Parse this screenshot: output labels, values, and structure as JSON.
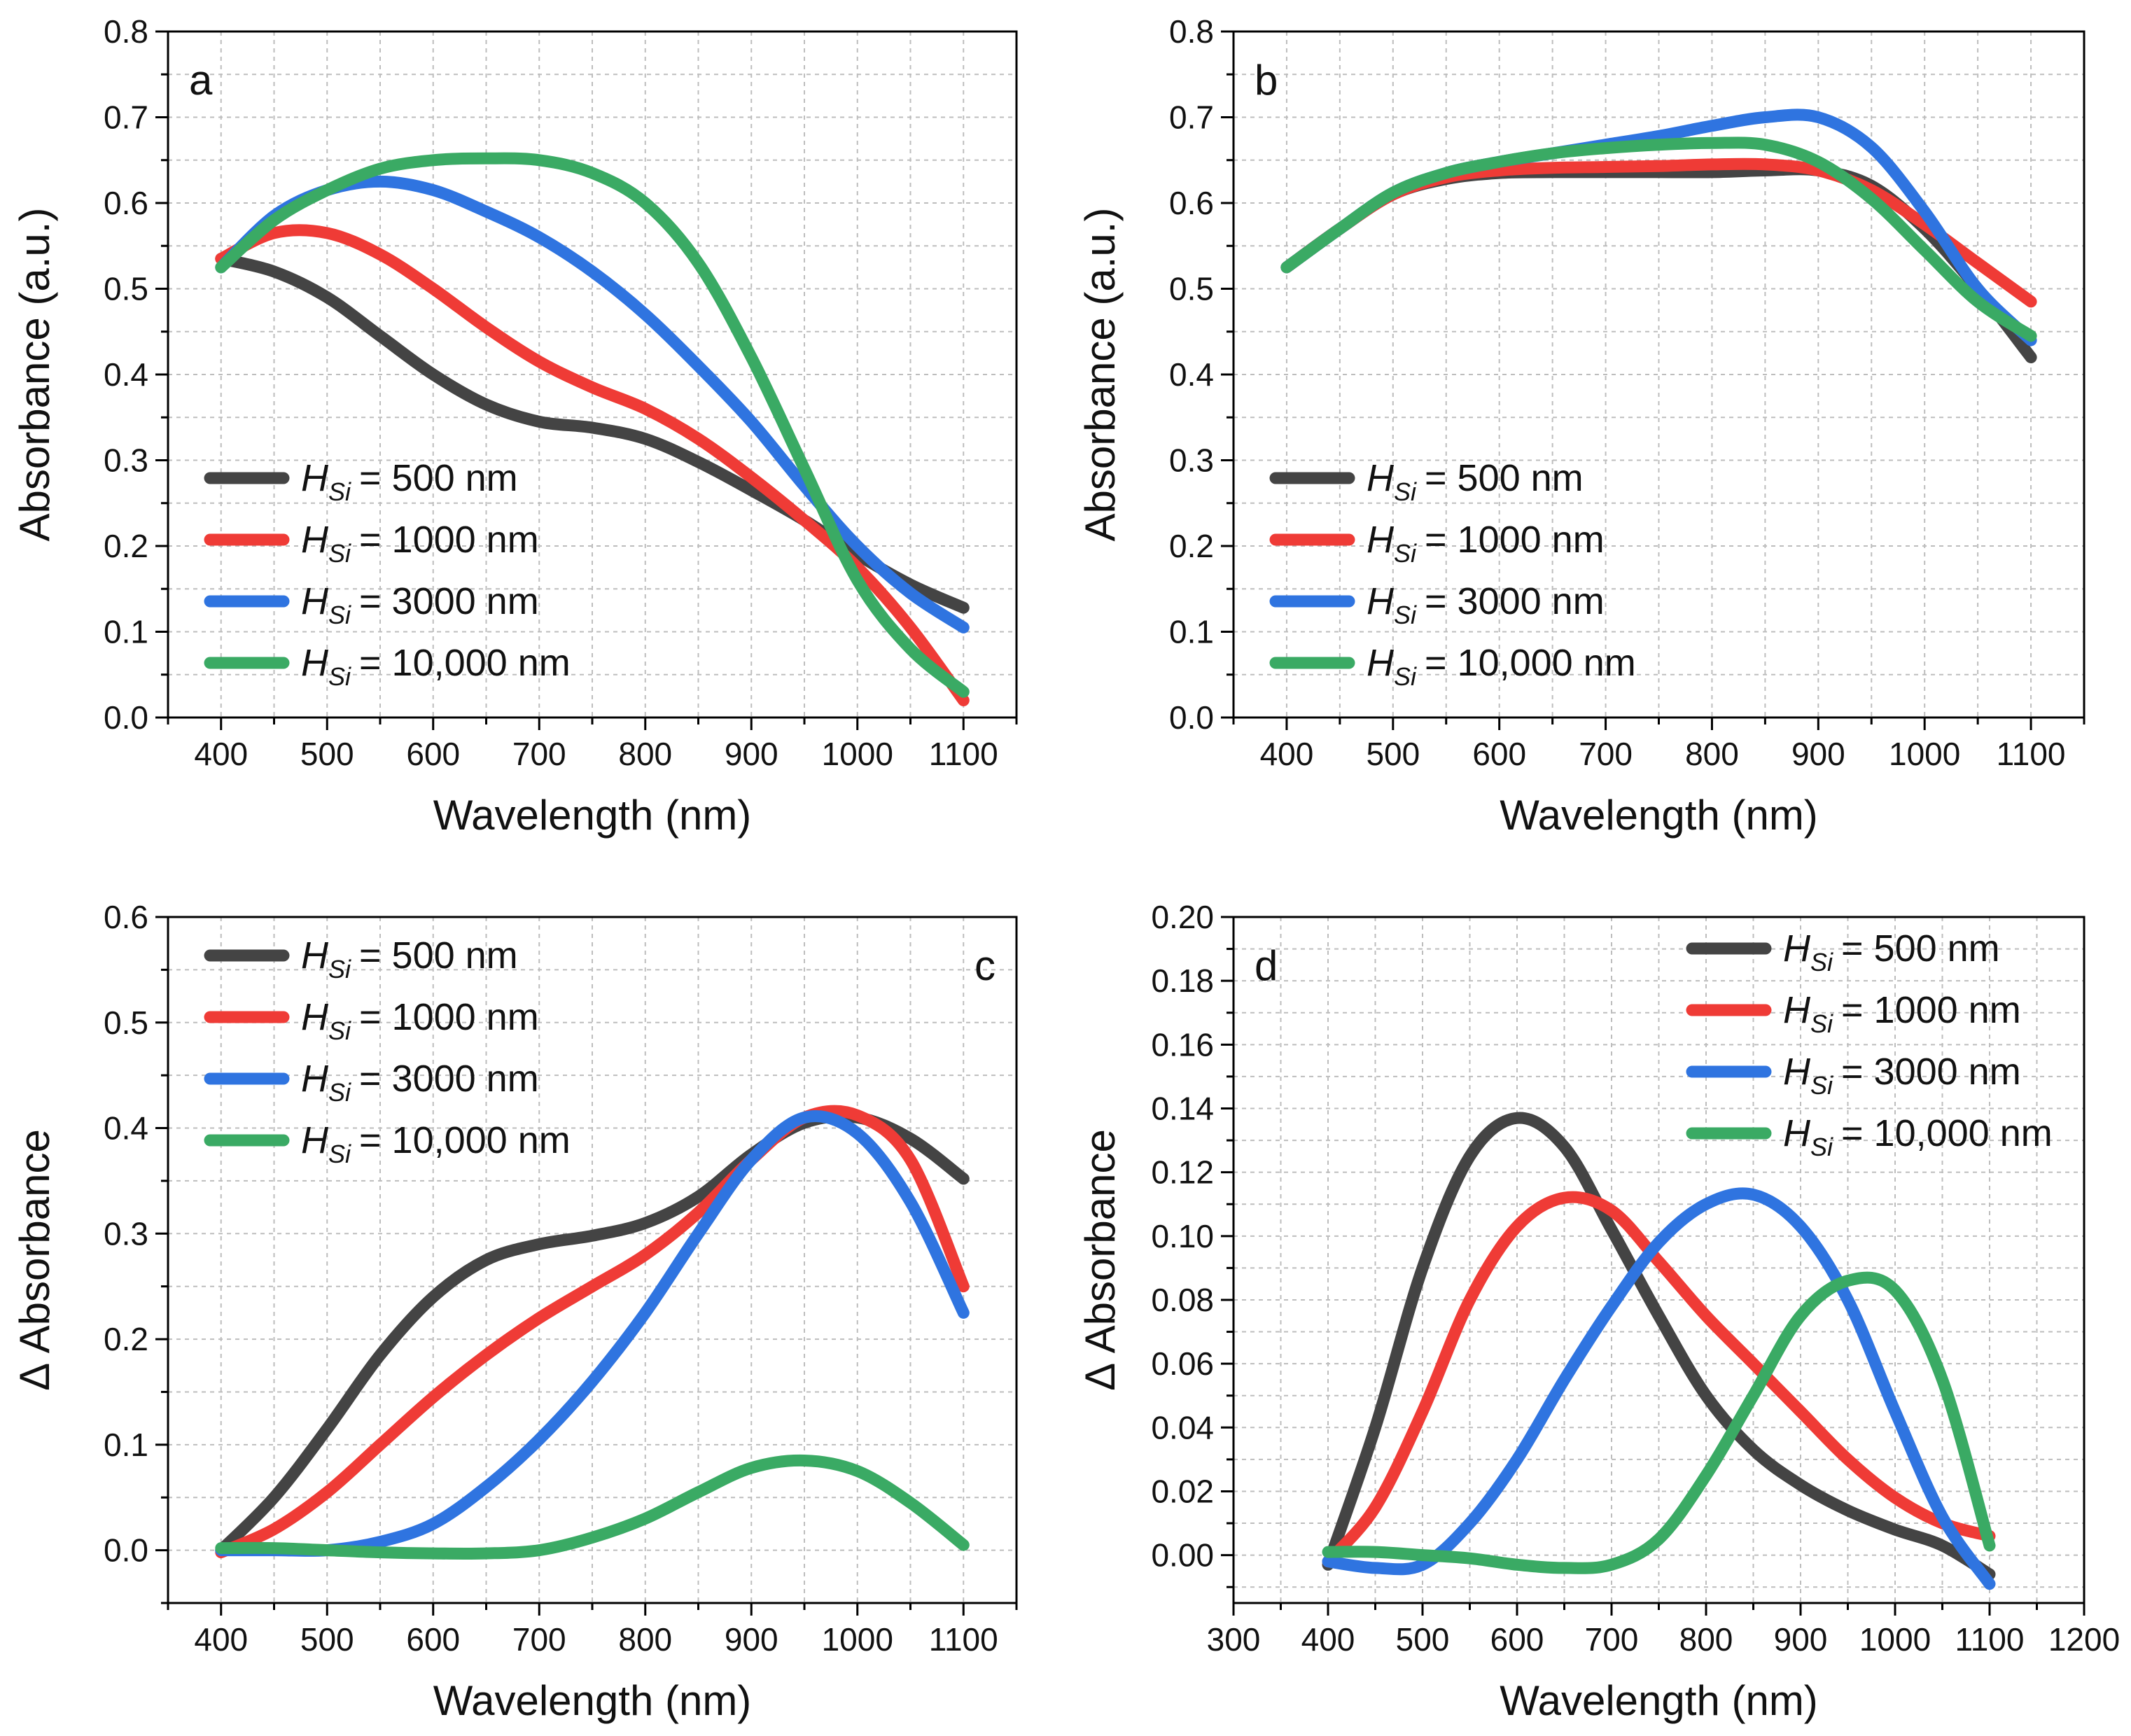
{
  "figure": {
    "panels_note": "",
    "line_colors": {
      "H500": "#444444",
      "H1000": "#EF3B36",
      "H3000": "#2F74E0",
      "H10000": "#3AAA64"
    },
    "grid_color": "#BDBDBD",
    "axis_color": "#000000"
  },
  "chart_data": [
    {
      "panel": "a",
      "type": "line",
      "xlabel": "Wavelength (nm)",
      "ylabel": "Absorbance (a.u.)",
      "xlim": [
        350,
        1150
      ],
      "ylim": [
        0,
        0.8
      ],
      "xticks": [
        400,
        500,
        600,
        700,
        800,
        900,
        1000,
        1100
      ],
      "xtick_labels": [
        "400",
        "500",
        "600",
        "700",
        "800",
        "900",
        "1000",
        "1100"
      ],
      "yticks": [
        0,
        0.1,
        0.2,
        0.3,
        0.4,
        0.5,
        0.6,
        0.7,
        0.8
      ],
      "ytick_labels": [
        "0.0",
        "0.1",
        "0.2",
        "0.3",
        "0.4",
        "0.5",
        "0.6",
        "0.7",
        "0.8"
      ],
      "legend_position": "bottom-left",
      "label_position": "top-left",
      "series": [
        {
          "key": "H500",
          "legend_label": "H",
          "legend_sub": "Si",
          "legend_value": "= 500 nm",
          "x": [
            400,
            450,
            500,
            550,
            600,
            650,
            700,
            750,
            800,
            850,
            900,
            950,
            1000,
            1050,
            1100
          ],
          "y": [
            0.535,
            0.52,
            0.49,
            0.445,
            0.4,
            0.365,
            0.345,
            0.338,
            0.325,
            0.298,
            0.265,
            0.23,
            0.19,
            0.155,
            0.128
          ]
        },
        {
          "key": "H1000",
          "legend_label": "H",
          "legend_sub": "Si",
          "legend_value": "= 1000 nm",
          "x": [
            400,
            450,
            500,
            550,
            600,
            650,
            700,
            750,
            800,
            850,
            900,
            950,
            1000,
            1050,
            1100
          ],
          "y": [
            0.535,
            0.565,
            0.565,
            0.54,
            0.5,
            0.455,
            0.415,
            0.385,
            0.36,
            0.325,
            0.28,
            0.23,
            0.175,
            0.105,
            0.02
          ]
        },
        {
          "key": "H3000",
          "legend_label": "H",
          "legend_sub": "Si",
          "legend_value": "= 3000 nm",
          "x": [
            400,
            450,
            500,
            550,
            600,
            650,
            700,
            750,
            800,
            850,
            900,
            950,
            1000,
            1050,
            1100
          ],
          "y": [
            0.525,
            0.585,
            0.615,
            0.625,
            0.615,
            0.59,
            0.56,
            0.52,
            0.47,
            0.41,
            0.345,
            0.27,
            0.2,
            0.145,
            0.105
          ]
        },
        {
          "key": "H10000",
          "legend_label": "H",
          "legend_sub": "Si",
          "legend_value": "= 10,000 nm",
          "x": [
            400,
            450,
            500,
            550,
            600,
            650,
            700,
            750,
            800,
            850,
            900,
            950,
            1000,
            1050,
            1100
          ],
          "y": [
            0.525,
            0.58,
            0.615,
            0.64,
            0.65,
            0.652,
            0.65,
            0.635,
            0.6,
            0.53,
            0.42,
            0.29,
            0.16,
            0.08,
            0.03
          ]
        }
      ]
    },
    {
      "panel": "b",
      "type": "line",
      "xlabel": "Wavelength (nm)",
      "ylabel": "Absorbance (a.u.)",
      "xlim": [
        350,
        1150
      ],
      "ylim": [
        0,
        0.8
      ],
      "xticks": [
        400,
        500,
        600,
        700,
        800,
        900,
        1000,
        1100
      ],
      "xtick_labels": [
        "400",
        "500",
        "600",
        "700",
        "800",
        "900",
        "1000",
        "1100"
      ],
      "yticks": [
        0,
        0.1,
        0.2,
        0.3,
        0.4,
        0.5,
        0.6,
        0.7,
        0.8
      ],
      "ytick_labels": [
        "0.0",
        "0.1",
        "0.2",
        "0.3",
        "0.4",
        "0.5",
        "0.6",
        "0.7",
        "0.8"
      ],
      "legend_position": "bottom-left",
      "label_position": "top-left",
      "series": [
        {
          "key": "H500",
          "legend_label": "H",
          "legend_sub": "Si",
          "legend_value": "= 500 nm",
          "x": [
            400,
            450,
            500,
            550,
            600,
            650,
            700,
            750,
            800,
            850,
            900,
            950,
            1000,
            1050,
            1100
          ],
          "y": [
            0.525,
            0.57,
            0.61,
            0.628,
            0.635,
            0.636,
            0.636,
            0.636,
            0.636,
            0.638,
            0.638,
            0.62,
            0.57,
            0.5,
            0.42
          ]
        },
        {
          "key": "H1000",
          "legend_label": "H",
          "legend_sub": "Si",
          "legend_value": "= 1000 nm",
          "x": [
            400,
            450,
            500,
            550,
            600,
            650,
            700,
            750,
            800,
            850,
            900,
            950,
            1000,
            1050,
            1100
          ],
          "y": [
            0.525,
            0.57,
            0.61,
            0.63,
            0.638,
            0.641,
            0.642,
            0.643,
            0.645,
            0.645,
            0.638,
            0.615,
            0.575,
            0.53,
            0.485
          ]
        },
        {
          "key": "H3000",
          "legend_label": "H",
          "legend_sub": "Si",
          "legend_value": "= 3000 nm",
          "x": [
            400,
            450,
            500,
            550,
            600,
            650,
            700,
            750,
            800,
            850,
            900,
            950,
            1000,
            1050,
            1100
          ],
          "y": [
            0.525,
            0.57,
            0.612,
            0.635,
            0.648,
            0.658,
            0.668,
            0.678,
            0.69,
            0.7,
            0.7,
            0.665,
            0.59,
            0.5,
            0.44
          ]
        },
        {
          "key": "H10000",
          "legend_label": "H",
          "legend_sub": "Si",
          "legend_value": "= 10,000 nm",
          "x": [
            400,
            450,
            500,
            550,
            600,
            650,
            700,
            750,
            800,
            850,
            900,
            950,
            1000,
            1050,
            1100
          ],
          "y": [
            0.525,
            0.57,
            0.612,
            0.635,
            0.648,
            0.658,
            0.664,
            0.668,
            0.67,
            0.668,
            0.648,
            0.605,
            0.545,
            0.485,
            0.445
          ]
        }
      ]
    },
    {
      "panel": "c",
      "type": "line",
      "xlabel": "Wavelength (nm)",
      "ylabel": "Δ Absorbance",
      "xlim": [
        350,
        1150
      ],
      "ylim": [
        -0.05,
        0.6
      ],
      "xticks": [
        400,
        500,
        600,
        700,
        800,
        900,
        1000,
        1100
      ],
      "xtick_labels": [
        "400",
        "500",
        "600",
        "700",
        "800",
        "900",
        "1000",
        "1100"
      ],
      "yticks": [
        0,
        0.1,
        0.2,
        0.3,
        0.4,
        0.5,
        0.6
      ],
      "ytick_labels": [
        "0.0",
        "0.1",
        "0.2",
        "0.3",
        "0.4",
        "0.5",
        "0.6"
      ],
      "legend_position": "top-left",
      "label_position": "top-right",
      "series": [
        {
          "key": "H500",
          "legend_label": "H",
          "legend_sub": "Si",
          "legend_value": "= 500 nm",
          "x": [
            400,
            450,
            500,
            550,
            600,
            650,
            700,
            750,
            800,
            850,
            900,
            950,
            1000,
            1050,
            1100
          ],
          "y": [
            0.0,
            0.05,
            0.115,
            0.185,
            0.24,
            0.275,
            0.29,
            0.298,
            0.31,
            0.335,
            0.375,
            0.405,
            0.41,
            0.39,
            0.352
          ]
        },
        {
          "key": "H1000",
          "legend_label": "H",
          "legend_sub": "Si",
          "legend_value": "= 1000 nm",
          "x": [
            400,
            450,
            500,
            550,
            600,
            650,
            700,
            750,
            800,
            850,
            900,
            950,
            1000,
            1050,
            1100
          ],
          "y": [
            -0.002,
            0.02,
            0.055,
            0.1,
            0.145,
            0.185,
            0.22,
            0.25,
            0.28,
            0.32,
            0.37,
            0.41,
            0.412,
            0.37,
            0.25
          ]
        },
        {
          "key": "H3000",
          "legend_label": "H",
          "legend_sub": "Si",
          "legend_value": "= 3000 nm",
          "x": [
            400,
            450,
            500,
            550,
            600,
            650,
            700,
            750,
            800,
            850,
            900,
            950,
            1000,
            1050,
            1100
          ],
          "y": [
            0.0,
            0.0,
            0.0,
            0.008,
            0.025,
            0.06,
            0.105,
            0.16,
            0.225,
            0.3,
            0.37,
            0.41,
            0.395,
            0.33,
            0.225
          ]
        },
        {
          "key": "H10000",
          "legend_label": "H",
          "legend_sub": "Si",
          "legend_value": "= 10,000 nm",
          "x": [
            400,
            450,
            500,
            550,
            600,
            650,
            700,
            750,
            800,
            850,
            900,
            950,
            1000,
            1050,
            1100
          ],
          "y": [
            0.002,
            0.002,
            0.0,
            -0.002,
            -0.003,
            -0.003,
            0.0,
            0.012,
            0.03,
            0.055,
            0.078,
            0.085,
            0.075,
            0.045,
            0.005
          ]
        }
      ]
    },
    {
      "panel": "d",
      "type": "line",
      "xlabel": "Wavelength (nm)",
      "ylabel": "Δ Absorbance",
      "xlim": [
        300,
        1200
      ],
      "ylim": [
        -0.015,
        0.2
      ],
      "xticks": [
        300,
        400,
        500,
        600,
        700,
        800,
        900,
        1000,
        1100,
        1200
      ],
      "xtick_labels": [
        "300",
        "400",
        "500",
        "600",
        "700",
        "800",
        "900",
        "1000",
        "1100",
        "1200"
      ],
      "yticks": [
        0,
        0.02,
        0.04,
        0.06,
        0.08,
        0.1,
        0.12,
        0.14,
        0.16,
        0.18,
        0.2
      ],
      "ytick_labels": [
        "0.00",
        "0.02",
        "0.04",
        "0.06",
        "0.08",
        "0.10",
        "0.12",
        "0.14",
        "0.16",
        "0.18",
        "0.20"
      ],
      "legend_position": "top-right",
      "label_position": "top-left",
      "series": [
        {
          "key": "H500",
          "legend_label": "H",
          "legend_sub": "Si",
          "legend_value": "= 500 nm",
          "x": [
            400,
            450,
            500,
            550,
            600,
            650,
            700,
            750,
            800,
            850,
            900,
            950,
            1000,
            1050,
            1100
          ],
          "y": [
            -0.003,
            0.04,
            0.09,
            0.125,
            0.137,
            0.128,
            0.102,
            0.075,
            0.05,
            0.033,
            0.022,
            0.014,
            0.008,
            0.003,
            -0.006
          ]
        },
        {
          "key": "H1000",
          "legend_label": "H",
          "legend_sub": "Si",
          "legend_value": "= 1000 nm",
          "x": [
            400,
            450,
            500,
            550,
            600,
            650,
            700,
            750,
            800,
            850,
            900,
            950,
            1000,
            1050,
            1100
          ],
          "y": [
            -0.002,
            0.015,
            0.045,
            0.08,
            0.103,
            0.112,
            0.108,
            0.092,
            0.075,
            0.06,
            0.045,
            0.03,
            0.018,
            0.01,
            0.006
          ]
        },
        {
          "key": "H3000",
          "legend_label": "H",
          "legend_sub": "Si",
          "legend_value": "= 3000 nm",
          "x": [
            400,
            450,
            500,
            550,
            600,
            650,
            700,
            750,
            800,
            850,
            900,
            950,
            1000,
            1050,
            1100
          ],
          "y": [
            -0.002,
            -0.004,
            -0.003,
            0.01,
            0.03,
            0.055,
            0.078,
            0.098,
            0.11,
            0.113,
            0.103,
            0.08,
            0.045,
            0.012,
            -0.009
          ]
        },
        {
          "key": "H10000",
          "legend_label": "H",
          "legend_sub": "Si",
          "legend_value": "= 10,000 nm",
          "x": [
            400,
            450,
            500,
            550,
            600,
            650,
            700,
            750,
            800,
            850,
            900,
            950,
            1000,
            1050,
            1100
          ],
          "y": [
            0.001,
            0.001,
            0.0,
            -0.001,
            -0.003,
            -0.004,
            -0.003,
            0.005,
            0.025,
            0.05,
            0.075,
            0.086,
            0.083,
            0.055,
            0.003
          ]
        }
      ]
    }
  ]
}
